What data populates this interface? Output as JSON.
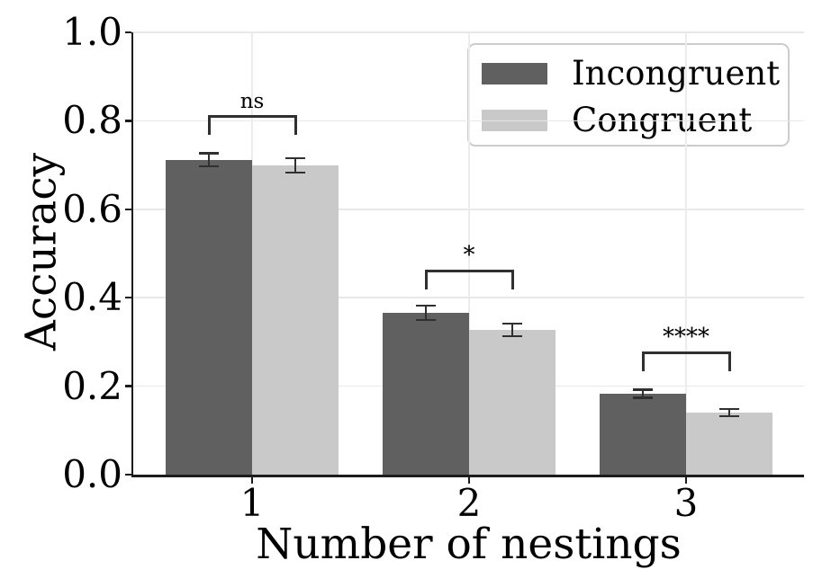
{
  "chart_data": {
    "type": "bar",
    "title": "",
    "xlabel": "Number of nestings",
    "ylabel": "Accuracy",
    "categories": [
      "1",
      "2",
      "3"
    ],
    "series": [
      {
        "name": "Incongruent",
        "color": "#606060",
        "values": [
          0.712,
          0.366,
          0.183
        ],
        "errors": [
          0.015,
          0.016,
          0.009
        ]
      },
      {
        "name": "Congruent",
        "color": "#c9c9c9",
        "values": [
          0.699,
          0.327,
          0.14
        ],
        "errors": [
          0.016,
          0.014,
          0.008
        ]
      }
    ],
    "ylim": [
      0.0,
      1.0
    ],
    "yticks": [
      "0.0",
      "0.2",
      "0.4",
      "0.6",
      "0.8",
      "1.0"
    ],
    "grid": true,
    "legend_position": "upper-right",
    "significance": [
      {
        "category": "1",
        "label": "ns",
        "bracket_y": 0.813
      },
      {
        "category": "2",
        "label": "*",
        "bracket_y": 0.463
      },
      {
        "category": "3",
        "label": "****",
        "bracket_y": 0.278
      }
    ],
    "colors": {
      "error_bar": "#303030",
      "grid": "#e8e8e8",
      "axis": "#1c1c1c",
      "text": "#000000"
    }
  }
}
